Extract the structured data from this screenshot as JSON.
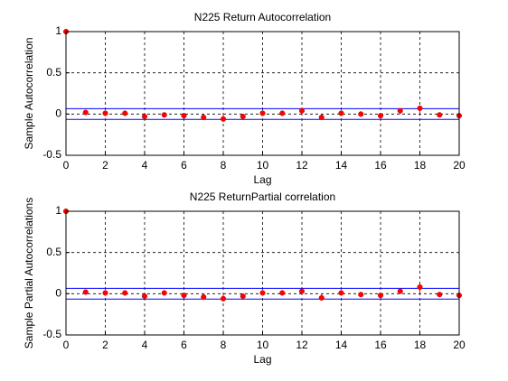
{
  "chart_data": [
    {
      "type": "stem",
      "title": "N225 Return Autocorrelation",
      "x_label": "Lag",
      "y_label": "Sample Autocorrelation",
      "x": [
        0,
        1,
        2,
        3,
        4,
        5,
        6,
        7,
        8,
        9,
        10,
        11,
        12,
        13,
        14,
        15,
        16,
        17,
        18,
        19,
        20
      ],
      "values": [
        1,
        0.02,
        0.01,
        0.01,
        -0.03,
        -0.01,
        -0.02,
        -0.04,
        -0.06,
        -0.03,
        0.01,
        0.01,
        0.04,
        -0.04,
        0.01,
        0.0,
        -0.02,
        0.04,
        0.07,
        -0.01,
        -0.02
      ],
      "color": "#ff0000",
      "bounds": [
        0.065,
        -0.065
      ],
      "bounds_color": "#0000ff",
      "xlim": [
        0,
        20
      ],
      "xticks": [
        0,
        2,
        4,
        6,
        8,
        10,
        12,
        14,
        16,
        18,
        20
      ],
      "ylim": [
        -0.5,
        1
      ],
      "yticks": [
        -0.5,
        0,
        0.5,
        1
      ],
      "grid": true
    },
    {
      "type": "stem",
      "title": "N225 ReturnPartial correlation",
      "x_label": "Lag",
      "y_label": "Sample Partial Autocorrelations",
      "x": [
        0,
        1,
        2,
        3,
        4,
        5,
        6,
        7,
        8,
        9,
        10,
        11,
        12,
        13,
        14,
        15,
        16,
        17,
        18,
        19,
        20
      ],
      "values": [
        1,
        0.02,
        0.01,
        0.01,
        -0.03,
        0.01,
        -0.02,
        -0.04,
        -0.06,
        -0.03,
        0.01,
        0.01,
        0.03,
        -0.05,
        0.01,
        -0.01,
        -0.02,
        0.03,
        0.08,
        -0.01,
        -0.02
      ],
      "color": "#ff0000",
      "bounds": [
        0.065,
        -0.065
      ],
      "bounds_color": "#0000ff",
      "xlim": [
        0,
        20
      ],
      "xticks": [
        0,
        2,
        4,
        6,
        8,
        10,
        12,
        14,
        16,
        18,
        20
      ],
      "ylim": [
        -0.5,
        1
      ],
      "yticks": [
        -0.5,
        0,
        0.5,
        1
      ],
      "grid": true
    }
  ]
}
